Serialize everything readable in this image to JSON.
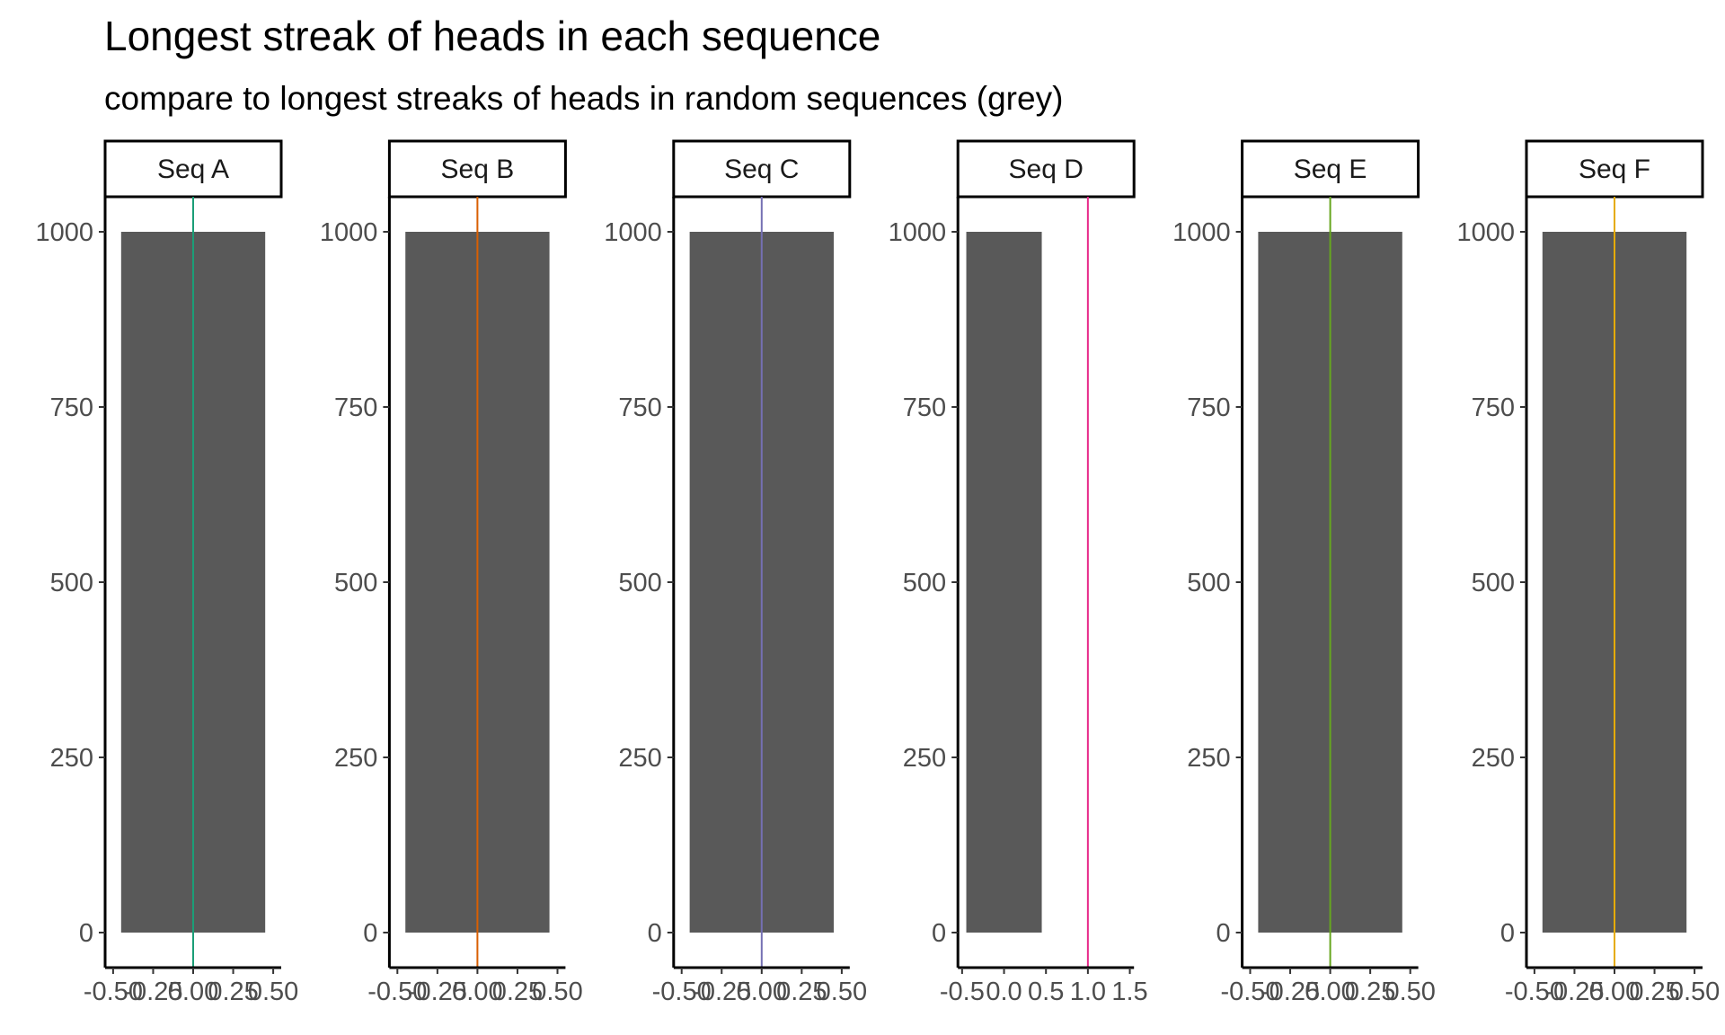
{
  "chart_data": {
    "type": "bar",
    "title": "Longest streak of heads in each sequence",
    "subtitle": "compare to longest streaks of heads in random sequences (grey)",
    "xlabel": "",
    "ylabel": "",
    "ylim": [
      -50,
      1050
    ],
    "y_ticks": [
      0,
      250,
      500,
      750,
      1000
    ],
    "bar_fill": "#595959",
    "grid": false,
    "facets": [
      {
        "strip": "Seq A",
        "xlim": [
          -0.55,
          0.55
        ],
        "x_ticks": [
          -0.5,
          -0.25,
          0,
          0.25,
          0.5
        ],
        "x_tick_labels": [
          "-0.50",
          "-0.25",
          "0.00",
          "0.25",
          "0.50"
        ],
        "bars": [
          {
            "x": 0,
            "width": 0.9,
            "count": 1000
          }
        ],
        "observed_streak": 0,
        "line_color": "#1b9e77"
      },
      {
        "strip": "Seq B",
        "xlim": [
          -0.55,
          0.55
        ],
        "x_ticks": [
          -0.5,
          -0.25,
          0,
          0.25,
          0.5
        ],
        "x_tick_labels": [
          "-0.50",
          "-0.25",
          "0.00",
          "0.25",
          "0.50"
        ],
        "bars": [
          {
            "x": 0,
            "width": 0.9,
            "count": 1000
          }
        ],
        "observed_streak": 0,
        "line_color": "#d95f02"
      },
      {
        "strip": "Seq C",
        "xlim": [
          -0.55,
          0.55
        ],
        "x_ticks": [
          -0.5,
          -0.25,
          0,
          0.25,
          0.5
        ],
        "x_tick_labels": [
          "-0.50",
          "-0.25",
          "0.00",
          "0.25",
          "0.50"
        ],
        "bars": [
          {
            "x": 0,
            "width": 0.9,
            "count": 1000
          }
        ],
        "observed_streak": 0,
        "line_color": "#7570b3"
      },
      {
        "strip": "Seq D",
        "xlim": [
          -0.55,
          1.55
        ],
        "x_ticks": [
          -0.5,
          0,
          0.5,
          1,
          1.5
        ],
        "x_tick_labels": [
          "-0.5",
          "0.0",
          "0.5",
          "1.0",
          "1.5"
        ],
        "bars": [
          {
            "x": 0,
            "width": 0.9,
            "count": 1000
          }
        ],
        "observed_streak": 1,
        "line_color": "#e7298a"
      },
      {
        "strip": "Seq E",
        "xlim": [
          -0.55,
          0.55
        ],
        "x_ticks": [
          -0.5,
          -0.25,
          0,
          0.25,
          0.5
        ],
        "x_tick_labels": [
          "-0.50",
          "-0.25",
          "0.00",
          "0.25",
          "0.50"
        ],
        "bars": [
          {
            "x": 0,
            "width": 0.9,
            "count": 1000
          }
        ],
        "observed_streak": 0,
        "line_color": "#66a61e"
      },
      {
        "strip": "Seq F",
        "xlim": [
          -0.55,
          0.55
        ],
        "x_ticks": [
          -0.5,
          -0.25,
          0,
          0.25,
          0.5
        ],
        "x_tick_labels": [
          "-0.50",
          "-0.25",
          "0.00",
          "0.25",
          "0.50"
        ],
        "bars": [
          {
            "x": 0,
            "width": 0.9,
            "count": 1000
          }
        ],
        "observed_streak": 0,
        "line_color": "#e6ab02"
      }
    ]
  }
}
